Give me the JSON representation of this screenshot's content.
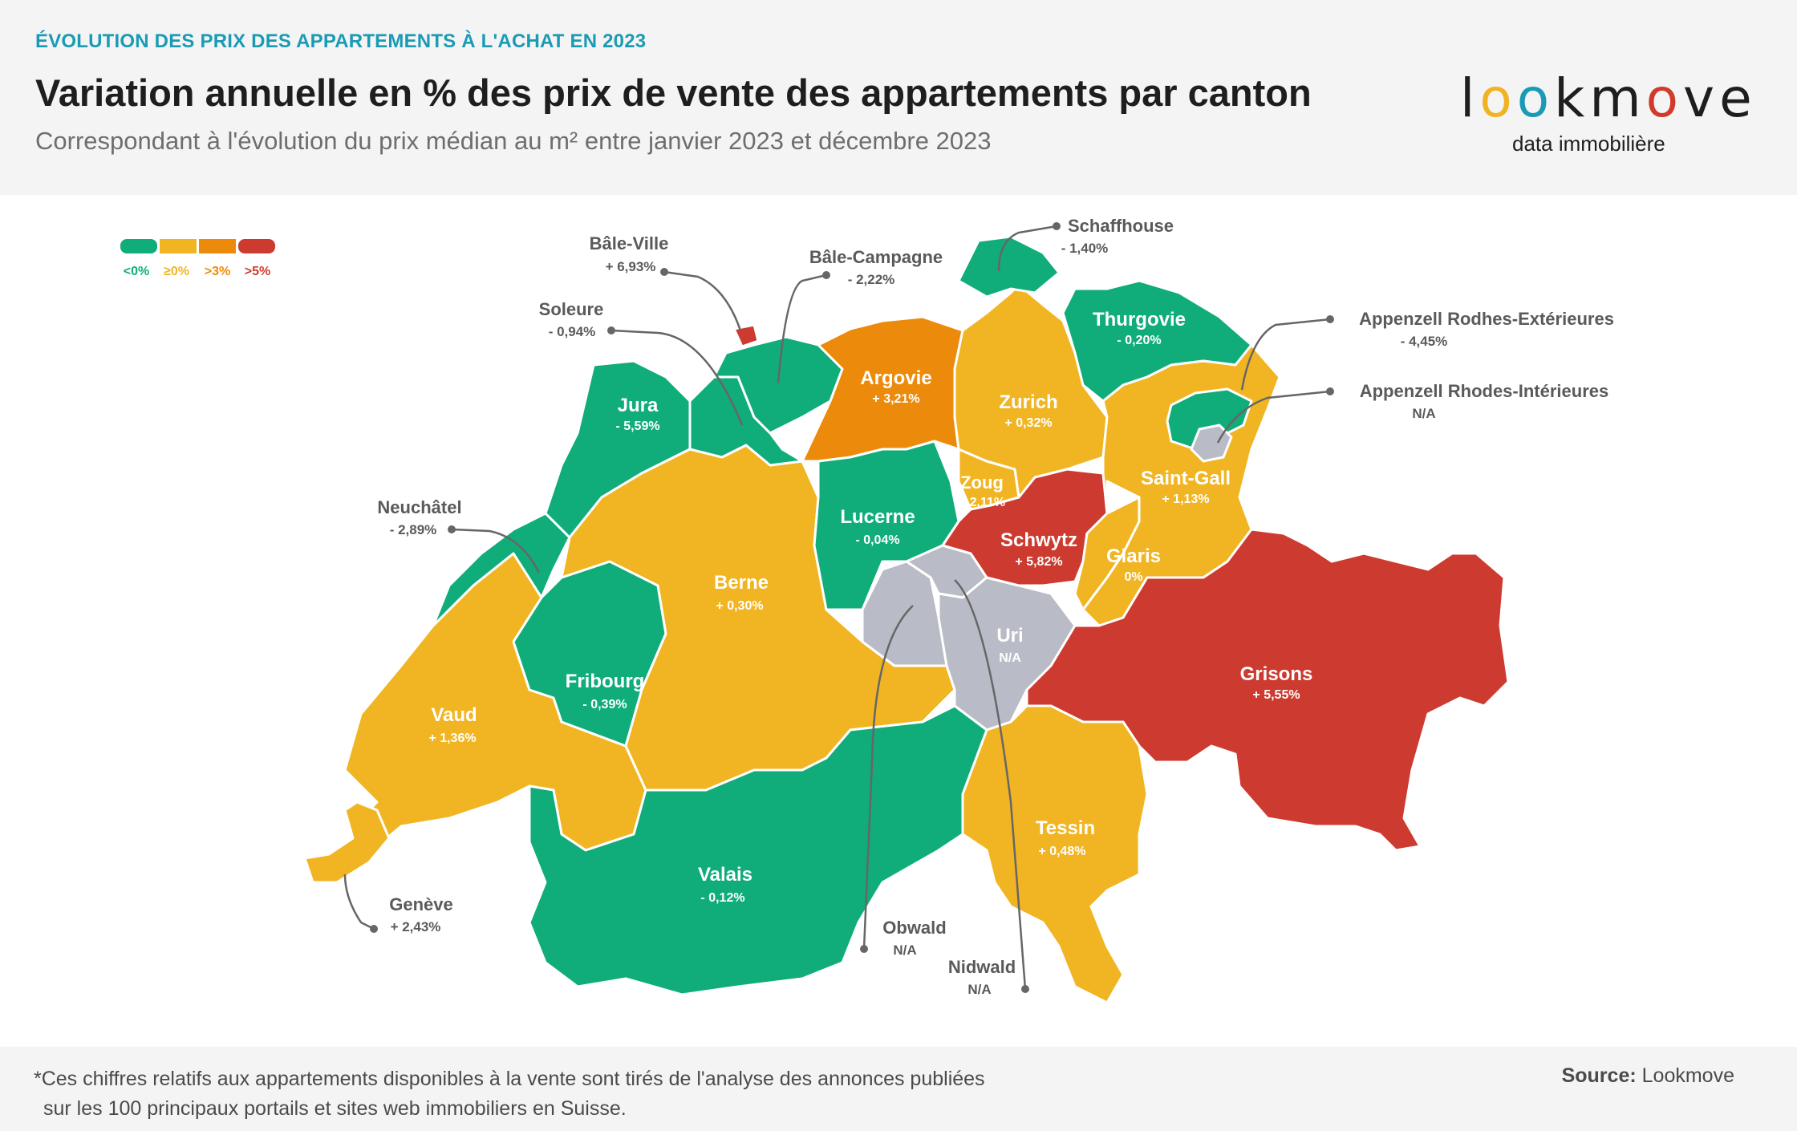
{
  "header": {
    "kicker": "ÉVOLUTION DES PRIX DES APPARTEMENTS À L'ACHAT EN 2023",
    "title": "Variation annuelle en % des prix de vente des appartements par canton",
    "subtitle": "Correspondant à l'évolution du prix médian au m² entre janvier 2023 et décembre 2023"
  },
  "logo": {
    "word": "lookmove",
    "tagline": "data immobilière"
  },
  "legend": [
    {
      "label": "<0%",
      "color": "#10ad7a"
    },
    {
      "label": "≥0%",
      "color": "#f1b523"
    },
    {
      "label": ">3%",
      "color": "#ec8b0b"
    },
    {
      "label": ">5%",
      "color": "#cd3a2f"
    }
  ],
  "colors": {
    "na": "#b9bcc6",
    "callout_line": "#666666",
    "label_text": "#ffffff",
    "callout_text": "#5a5a5a"
  },
  "cantons": {
    "jura": {
      "name": "Jura",
      "value": "- 5,59%",
      "category": "<0%"
    },
    "argovie": {
      "name": "Argovie",
      "value": "+ 3,21%",
      "category": ">3%"
    },
    "zurich": {
      "name": "Zurich",
      "value": "+ 0,32%",
      "category": "≥0%"
    },
    "thurgovie": {
      "name": "Thurgovie",
      "value": "- 0,20%",
      "category": "<0%"
    },
    "saint_gall": {
      "name": "Saint-Gall",
      "value": "+ 1,13%",
      "category": "≥0%"
    },
    "zoug": {
      "name": "Zoug",
      "value": "+ 2,11%",
      "category": "≥0%"
    },
    "schwytz": {
      "name": "Schwytz",
      "value": "+ 5,82%",
      "category": ">5%"
    },
    "glaris": {
      "name": "Glaris",
      "value": "0%",
      "category": "≥0%"
    },
    "lucerne": {
      "name": "Lucerne",
      "value": "- 0,04%",
      "category": "<0%"
    },
    "berne": {
      "name": "Berne",
      "value": "+ 0,30%",
      "category": "≥0%"
    },
    "uri": {
      "name": "Uri",
      "value": "N/A",
      "category": "N/A"
    },
    "grisons": {
      "name": "Grisons",
      "value": "+ 5,55%",
      "category": ">5%"
    },
    "fribourg": {
      "name": "Fribourg",
      "value": "- 0,39%",
      "category": "<0%"
    },
    "vaud": {
      "name": "Vaud",
      "value": "+ 1,36%",
      "category": "≥0%"
    },
    "tessin": {
      "name": "Tessin",
      "value": "+ 0,48%",
      "category": "≥0%"
    },
    "valais": {
      "name": "Valais",
      "value": "- 0,12%",
      "category": "<0%"
    },
    "bale_ville": {
      "name": "Bâle-Ville",
      "value": "+ 6,93%",
      "category": ">5%"
    },
    "bale_campagne": {
      "name": "Bâle-Campagne",
      "value": "- 2,22%",
      "category": "<0%"
    },
    "soleure": {
      "name": "Soleure",
      "value": "- 0,94%",
      "category": "<0%"
    },
    "schaffhouse": {
      "name": "Schaffhouse",
      "value": "- 1,40%",
      "category": "<0%"
    },
    "appenzell_re": {
      "name": "Appenzell Rodhes-Extérieures",
      "value": "- 4,45%",
      "category": "<0%"
    },
    "appenzell_ri": {
      "name": "Appenzell Rhodes-Intérieures",
      "value": "N/A",
      "category": "N/A"
    },
    "neuchatel": {
      "name": "Neuchâtel",
      "value": "- 2,89%",
      "category": "<0%"
    },
    "geneve": {
      "name": "Genève",
      "value": "+ 2,43%",
      "category": "≥0%"
    },
    "obwald": {
      "name": "Obwald",
      "value": "N/A",
      "category": "N/A"
    },
    "nidwald": {
      "name": "Nidwald",
      "value": "N/A",
      "category": "N/A"
    }
  },
  "footer": {
    "note_line1": "*Ces chiffres relatifs aux appartements disponibles à la vente sont tirés de l'analyse des annonces publiées",
    "note_line2": "sur les 100 principaux portails et sites web immobiliers en Suisse.",
    "source_label": "Source:",
    "source_value": "Lookmove"
  }
}
